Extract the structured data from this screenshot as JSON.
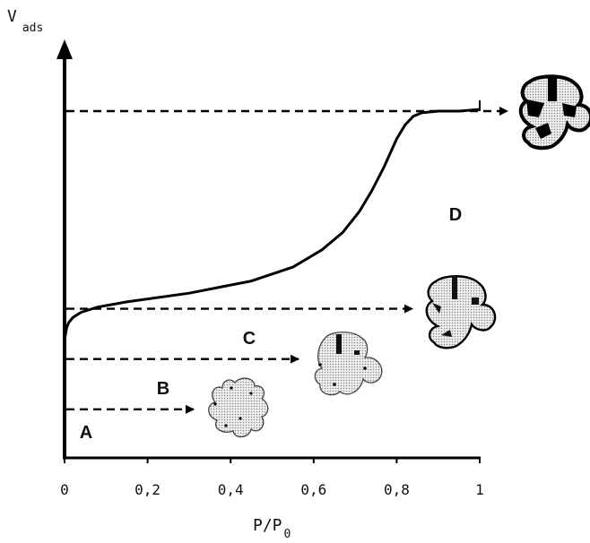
{
  "chart_data": {
    "type": "line",
    "title": "",
    "xlabel": "P/P",
    "xlabel_subscript": "0",
    "ylabel": "V",
    "ylabel_subscript": "ads",
    "xlim": [
      0,
      1
    ],
    "xticks": [
      {
        "value": 0,
        "label": "0"
      },
      {
        "value": 0.2,
        "label": "0,2"
      },
      {
        "value": 0.4,
        "label": "0,4"
      },
      {
        "value": 0.6,
        "label": "0,6"
      },
      {
        "value": 0.8,
        "label": "0,8"
      },
      {
        "value": 1,
        "label": "1"
      }
    ],
    "grid": false,
    "series": [
      {
        "color": "#000000",
        "x": [
          0.0,
          0.005,
          0.01,
          0.02,
          0.04,
          0.08,
          0.15,
          0.3,
          0.45,
          0.55,
          0.62,
          0.67,
          0.71,
          0.74,
          0.77,
          0.8,
          0.82,
          0.84,
          0.86,
          0.9,
          0.95,
          1.0
        ],
        "y": [
          0.34,
          0.375,
          0.39,
          0.405,
          0.42,
          0.435,
          0.45,
          0.475,
          0.51,
          0.55,
          0.6,
          0.65,
          0.71,
          0.77,
          0.84,
          0.92,
          0.96,
          0.985,
          0.995,
          1.0,
          1.0,
          1.005
        ]
      }
    ],
    "regions": [
      {
        "label": "A",
        "level_y": 0.14
      },
      {
        "label": "B",
        "level_y": 0.285
      },
      {
        "label": "C",
        "level_y": 0.43
      },
      {
        "label": "D",
        "level_y": 1.0
      }
    ]
  }
}
